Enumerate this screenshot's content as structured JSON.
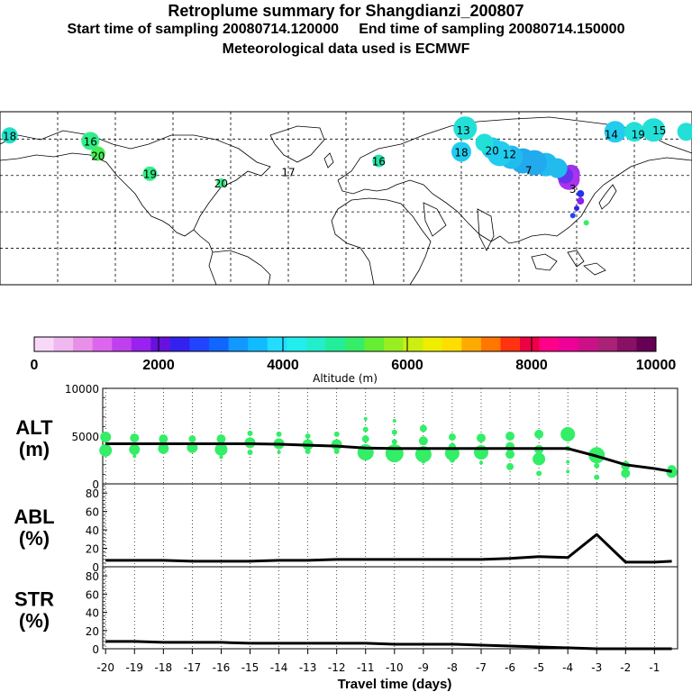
{
  "header": {
    "title": "Retroplume summary for Shangdianzi_200807",
    "line2": "Start time of sampling 20080714.120000     End time of sampling 20080714.150000",
    "line3": "Meteorological data used is ECMWF"
  },
  "map": {
    "labels": [
      {
        "text": "18",
        "lon": -175,
        "lat": 62,
        "c": "#22e0c8"
      },
      {
        "text": "16",
        "lon": -133,
        "lat": 59,
        "c": "#33ee88"
      },
      {
        "text": "20",
        "lon": -129,
        "lat": 51,
        "c": "#44ee55"
      },
      {
        "text": "19",
        "lon": -102,
        "lat": 41,
        "c": "#33ee88"
      },
      {
        "text": "20",
        "lon": -65,
        "lat": 36,
        "c": "#33ee88"
      },
      {
        "text": "17",
        "lon": -30,
        "lat": 42,
        "c": "#33ee88"
      },
      {
        "text": "16",
        "lon": 17,
        "lat": 48,
        "c": "#22e0a8"
      },
      {
        "text": "18",
        "lon": 60,
        "lat": 53,
        "c": "#22ccee"
      },
      {
        "text": "13",
        "lon": 61,
        "lat": 65,
        "c": "#22e0d8"
      },
      {
        "text": "14",
        "lon": 138,
        "lat": 63,
        "c": "#22ccee"
      },
      {
        "text": "19",
        "lon": 152,
        "lat": 63,
        "c": "#22e0d8"
      },
      {
        "text": "15",
        "lon": 163,
        "lat": 65,
        "c": "#22e0d8"
      },
      {
        "text": "20",
        "lon": 76,
        "lat": 54,
        "c": "#66ee33"
      },
      {
        "text": "12",
        "lon": 85,
        "lat": 52,
        "c": "#22ccee"
      },
      {
        "text": "7",
        "lon": 95,
        "lat": 43,
        "c": "#22aaee"
      },
      {
        "text": "3",
        "lon": 118,
        "lat": 33,
        "c": "#aa33ee"
      }
    ]
  },
  "colorbar": {
    "ticks": [
      "0",
      "2000",
      "4000",
      "6000",
      "8000",
      "10000"
    ],
    "label": "Altitude (m)",
    "colors": [
      "#f8d8f8",
      "#f0b8f0",
      "#e890e8",
      "#dd66ee",
      "#c040ee",
      "#9922ee",
      "#6611dd",
      "#3322ee",
      "#2244ff",
      "#1166ff",
      "#1199ff",
      "#11bbff",
      "#22ddff",
      "#22eeee",
      "#22eecc",
      "#22ee99",
      "#33ee66",
      "#66ee33",
      "#99ee22",
      "#ccee11",
      "#eeee00",
      "#ffdd00",
      "#ffaa00",
      "#ff7700",
      "#ff3311",
      "#ee0044",
      "#ff0088",
      "#ee0099",
      "#cc1188",
      "#aa2277",
      "#881166",
      "#660055"
    ]
  },
  "xaxis": {
    "title": "Travel time (days)",
    "ticks": [
      "-20",
      "-19",
      "-18",
      "-17",
      "-16",
      "-15",
      "-14",
      "-13",
      "-12",
      "-11",
      "-10",
      "-9",
      "-8",
      "-7",
      "-6",
      "-5",
      "-4",
      "-3",
      "-2",
      "-1"
    ],
    "tick_values": [
      -20,
      -19,
      -18,
      -17,
      -16,
      -15,
      -14,
      -13,
      -12,
      -11,
      -10,
      -9,
      -8,
      -7,
      -6,
      -5,
      -4,
      -3,
      -2,
      -1
    ]
  },
  "chart_data": [
    {
      "type": "line",
      "panel_label": "ALT",
      "panel_unit": "(m)",
      "ylabel": "ALT (m)",
      "xlabel": "Travel time (days)",
      "xlim": [
        -20.1,
        -0.2
      ],
      "ylim": [
        0,
        10000
      ],
      "yticks": [
        "0",
        "5000",
        "10000"
      ],
      "ytick_values": [
        0,
        5000,
        10000
      ],
      "x": [
        -20,
        -19,
        -18,
        -17,
        -16,
        -15,
        -14,
        -13,
        -12,
        -11,
        -10,
        -9,
        -8,
        -7,
        -6,
        -5,
        -4,
        -3,
        -2,
        -1,
        -0.4
      ],
      "values": [
        4200,
        4200,
        4200,
        4200,
        4200,
        4200,
        4150,
        4050,
        3950,
        3750,
        3700,
        3700,
        3700,
        3700,
        3700,
        3700,
        3700,
        2900,
        2000,
        1600,
        1300
      ],
      "scatter": [
        {
          "x": -20,
          "y": 4900,
          "s": 6
        },
        {
          "x": -20,
          "y": 3500,
          "s": 7
        },
        {
          "x": -19,
          "y": 4800,
          "s": 5
        },
        {
          "x": -19,
          "y": 3600,
          "s": 6
        },
        {
          "x": -19,
          "y": 2900,
          "s": 2
        },
        {
          "x": -18,
          "y": 4700,
          "s": 5
        },
        {
          "x": -18,
          "y": 3700,
          "s": 6
        },
        {
          "x": -17,
          "y": 4700,
          "s": 4
        },
        {
          "x": -17,
          "y": 3800,
          "s": 6
        },
        {
          "x": -16,
          "y": 4700,
          "s": 5
        },
        {
          "x": -16,
          "y": 3600,
          "s": 7
        },
        {
          "x": -16,
          "y": 2800,
          "s": 2
        },
        {
          "x": -15,
          "y": 5300,
          "s": 3
        },
        {
          "x": -15,
          "y": 4300,
          "s": 6
        },
        {
          "x": -15,
          "y": 3300,
          "s": 3
        },
        {
          "x": -14,
          "y": 5200,
          "s": 3
        },
        {
          "x": -14,
          "y": 4200,
          "s": 6
        },
        {
          "x": -14,
          "y": 3300,
          "s": 2
        },
        {
          "x": -13,
          "y": 5000,
          "s": 3
        },
        {
          "x": -13,
          "y": 4100,
          "s": 6
        },
        {
          "x": -13,
          "y": 3400,
          "s": 3
        },
        {
          "x": -12,
          "y": 5200,
          "s": 3
        },
        {
          "x": -12,
          "y": 4100,
          "s": 6
        },
        {
          "x": -12,
          "y": 3400,
          "s": 3
        },
        {
          "x": -11,
          "y": 6800,
          "s": 2
        },
        {
          "x": -11,
          "y": 5700,
          "s": 3
        },
        {
          "x": -11,
          "y": 4700,
          "s": 4
        },
        {
          "x": -11,
          "y": 3300,
          "s": 9
        },
        {
          "x": -10,
          "y": 6600,
          "s": 2
        },
        {
          "x": -10,
          "y": 5400,
          "s": 3
        },
        {
          "x": -10,
          "y": 4400,
          "s": 3
        },
        {
          "x": -10,
          "y": 3200,
          "s": 10
        },
        {
          "x": -9,
          "y": 5800,
          "s": 4
        },
        {
          "x": -9,
          "y": 4500,
          "s": 5
        },
        {
          "x": -9,
          "y": 3100,
          "s": 9
        },
        {
          "x": -9,
          "y": 2300,
          "s": 2
        },
        {
          "x": -8,
          "y": 4900,
          "s": 4
        },
        {
          "x": -8,
          "y": 3900,
          "s": 4
        },
        {
          "x": -8,
          "y": 3200,
          "s": 8
        },
        {
          "x": -8,
          "y": 2500,
          "s": 3
        },
        {
          "x": -7,
          "y": 4800,
          "s": 5
        },
        {
          "x": -7,
          "y": 3300,
          "s": 8
        },
        {
          "x": -7,
          "y": 2200,
          "s": 2
        },
        {
          "x": -6,
          "y": 5000,
          "s": 5
        },
        {
          "x": -6,
          "y": 3900,
          "s": 5
        },
        {
          "x": -6,
          "y": 3100,
          "s": 5
        },
        {
          "x": -6,
          "y": 1800,
          "s": 4
        },
        {
          "x": -5,
          "y": 5200,
          "s": 5
        },
        {
          "x": -5,
          "y": 3600,
          "s": 5
        },
        {
          "x": -5,
          "y": 2600,
          "s": 7
        },
        {
          "x": -5,
          "y": 1100,
          "s": 3
        },
        {
          "x": -4,
          "y": 5200,
          "s": 8
        },
        {
          "x": -4,
          "y": 3700,
          "s": 3
        },
        {
          "x": -4,
          "y": 2300,
          "s": 2
        },
        {
          "x": -4,
          "y": 1300,
          "s": 2
        },
        {
          "x": -3,
          "y": 3000,
          "s": 9
        },
        {
          "x": -3,
          "y": 1900,
          "s": 3
        },
        {
          "x": -3,
          "y": 700,
          "s": 3
        },
        {
          "x": -2,
          "y": 1900,
          "s": 5
        },
        {
          "x": -2,
          "y": 1100,
          "s": 5
        },
        {
          "x": -0.4,
          "y": 1500,
          "s": 5
        },
        {
          "x": -0.4,
          "y": 1200,
          "s": 6
        }
      ]
    },
    {
      "type": "line",
      "panel_label": "ABL",
      "panel_unit": "(%)",
      "ylabel": "ABL (%)",
      "xlabel": "Travel time (days)",
      "xlim": [
        -20.1,
        -0.2
      ],
      "ylim": [
        0,
        90
      ],
      "yticks": [
        "0",
        "20",
        "40",
        "60",
        "80"
      ],
      "ytick_values": [
        0,
        20,
        40,
        60,
        80
      ],
      "x": [
        -20,
        -19,
        -18,
        -17,
        -16,
        -15,
        -14,
        -13,
        -12,
        -11,
        -10,
        -9,
        -8,
        -7,
        -6,
        -5,
        -4,
        -3,
        -2,
        -1,
        -0.4
      ],
      "values": [
        7,
        7,
        7,
        6,
        6,
        6,
        7,
        7,
        8,
        8,
        8,
        8,
        8,
        8,
        9,
        11,
        10,
        35,
        5,
        5,
        6
      ]
    },
    {
      "type": "line",
      "panel_label": "STR",
      "panel_unit": "(%)",
      "ylabel": "STR (%)",
      "xlabel": "Travel time (days)",
      "xlim": [
        -20.1,
        -0.2
      ],
      "ylim": [
        0,
        90
      ],
      "yticks": [
        "0",
        "20",
        "40",
        "60",
        "80"
      ],
      "ytick_values": [
        0,
        20,
        40,
        60,
        80
      ],
      "x": [
        -20,
        -19,
        -18,
        -17,
        -16,
        -15,
        -14,
        -13,
        -12,
        -11,
        -10,
        -9,
        -8,
        -7,
        -6,
        -5,
        -4,
        -3,
        -2,
        -1,
        -0.4
      ],
      "values": [
        8,
        8,
        7,
        7,
        7,
        6,
        6,
        6,
        6,
        6,
        5,
        5,
        5,
        4,
        3,
        2,
        1,
        0,
        0,
        0,
        0
      ]
    }
  ]
}
